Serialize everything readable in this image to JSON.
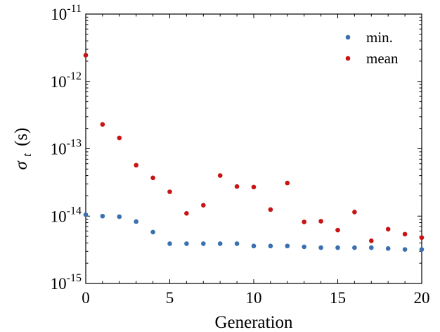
{
  "chart_data": {
    "type": "scatter",
    "title": "",
    "xlabel": "Generation",
    "ylabel": {
      "symbol": "σ",
      "subscript": "t",
      "unit": "(s)"
    },
    "xlim": [
      0,
      20
    ],
    "ylim": [
      1e-15,
      1e-11
    ],
    "yscale": "log",
    "grid": false,
    "legend_position": "top-right",
    "x_ticks": [
      "0",
      "5",
      "10",
      "15",
      "20"
    ],
    "y_ticks": [
      {
        "base": "10",
        "exp": "-15"
      },
      {
        "base": "10",
        "exp": "-14"
      },
      {
        "base": "10",
        "exp": "-13"
      },
      {
        "base": "10",
        "exp": "-12"
      },
      {
        "base": "10",
        "exp": "-11"
      }
    ],
    "x": [
      0,
      1,
      2,
      3,
      4,
      5,
      6,
      7,
      8,
      9,
      10,
      11,
      12,
      13,
      14,
      15,
      16,
      17,
      18,
      19,
      20
    ],
    "series": [
      {
        "name": "min.",
        "color": "#3a6fb0",
        "values": [
          1.05e-14,
          1e-14,
          9.8e-15,
          8.3e-15,
          5.8e-15,
          3.9e-15,
          3.9e-15,
          3.9e-15,
          3.9e-15,
          3.9e-15,
          3.6e-15,
          3.6e-15,
          3.6e-15,
          3.5e-15,
          3.4e-15,
          3.4e-15,
          3.4e-15,
          3.4e-15,
          3.3e-15,
          3.2e-15,
          3.2e-15
        ]
      },
      {
        "name": "mean",
        "color": "#c81414",
        "values": [
          2.45e-12,
          2.3e-13,
          1.45e-13,
          5.7e-14,
          3.7e-14,
          2.3e-14,
          1.1e-14,
          1.45e-14,
          4e-14,
          2.75e-14,
          2.7e-14,
          1.25e-14,
          3.1e-14,
          8.2e-15,
          8.4e-15,
          6.2e-15,
          1.15e-14,
          4.3e-15,
          6.4e-15,
          5.4e-15,
          4.8e-15
        ]
      }
    ]
  }
}
